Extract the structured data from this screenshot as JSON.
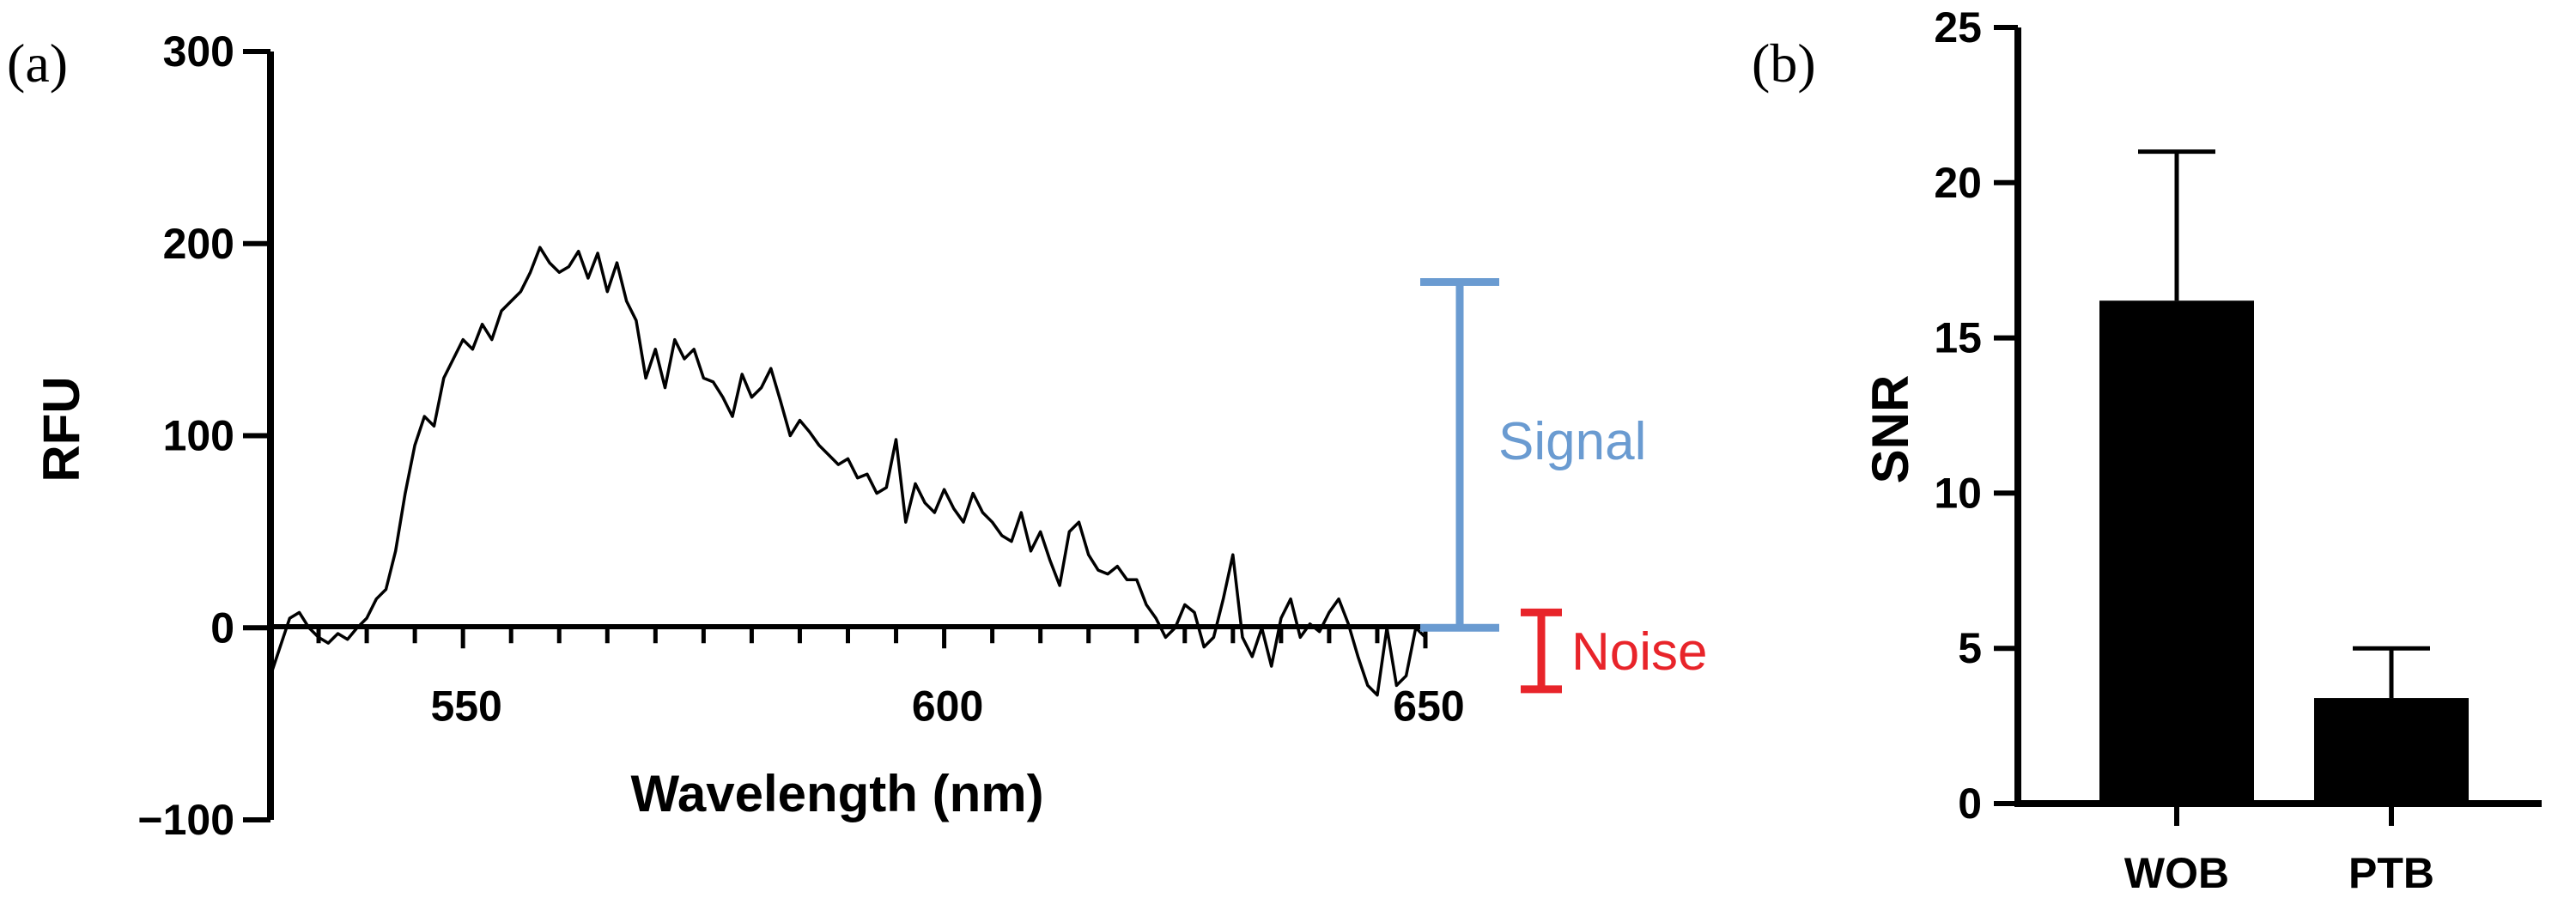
{
  "chart_data": [
    {
      "panel": "(a)",
      "type": "line",
      "xlabel": "Wavelength (nm)",
      "ylabel": "RFU",
      "xlim": [
        530,
        650
      ],
      "ylim": [
        -100,
        300
      ],
      "xticks": [
        "550",
        "600",
        "650"
      ],
      "yticks": [
        "300",
        "200",
        "100",
        "0",
        "−100"
      ],
      "x_minor_tick_step": 5,
      "grid": false,
      "colors": {
        "line": "#000000",
        "signal": "#6a9bd1",
        "noise": "#e8242a"
      },
      "annotations": [
        {
          "label": "Signal",
          "from": 0,
          "to": 180
        },
        {
          "label": "Noise",
          "from": -32,
          "to": 8
        }
      ],
      "series": [
        {
          "x": [
            530,
            531,
            532,
            533,
            534,
            535,
            536,
            537,
            538,
            539,
            540,
            541,
            542,
            543,
            544,
            545,
            546,
            547,
            548,
            549,
            550,
            551,
            552,
            553,
            554,
            555,
            556,
            557,
            558,
            559,
            560,
            561,
            562,
            563,
            564,
            565,
            566,
            567,
            568,
            569,
            570,
            571,
            572,
            573,
            574,
            575,
            576,
            577,
            578,
            579,
            580,
            581,
            582,
            583,
            584,
            585,
            586,
            587,
            588,
            589,
            590,
            591,
            592,
            593,
            594,
            595,
            596,
            597,
            598,
            599,
            600,
            601,
            602,
            603,
            604,
            605,
            606,
            607,
            608,
            609,
            610,
            611,
            612,
            613,
            614,
            615,
            616,
            617,
            618,
            619,
            620,
            621,
            622,
            623,
            624,
            625,
            626,
            627,
            628,
            629,
            630,
            631,
            632,
            633,
            634,
            635,
            636,
            637,
            638,
            639,
            640,
            641,
            642,
            643,
            644,
            645,
            646,
            647,
            648,
            649,
            650
          ],
          "y": [
            -25,
            -10,
            5,
            8,
            0,
            -5,
            -8,
            -3,
            -6,
            0,
            5,
            15,
            20,
            40,
            70,
            95,
            110,
            105,
            130,
            140,
            150,
            145,
            158,
            150,
            165,
            170,
            175,
            185,
            198,
            190,
            185,
            188,
            196,
            182,
            195,
            175,
            190,
            170,
            160,
            130,
            145,
            125,
            150,
            140,
            145,
            130,
            128,
            120,
            110,
            132,
            120,
            125,
            135,
            118,
            100,
            108,
            102,
            95,
            90,
            85,
            88,
            78,
            80,
            70,
            73,
            98,
            55,
            75,
            65,
            60,
            72,
            62,
            55,
            70,
            60,
            55,
            48,
            45,
            60,
            40,
            50,
            35,
            22,
            50,
            55,
            38,
            30,
            28,
            32,
            25,
            25,
            12,
            5,
            -5,
            0,
            12,
            8,
            -10,
            -5,
            15,
            38,
            -5,
            -15,
            0,
            -20,
            5,
            15,
            -5,
            2,
            -2,
            8,
            15,
            2,
            -15,
            -30,
            -35,
            0,
            -30,
            -25,
            0,
            -5
          ]
        }
      ]
    },
    {
      "panel": "(b)",
      "type": "bar",
      "ylabel": "SNR",
      "xlabel": "",
      "ylim": [
        0,
        25
      ],
      "yticks": [
        "0",
        "5",
        "10",
        "15",
        "20",
        "25"
      ],
      "categories": [
        "WOB",
        "PTB"
      ],
      "values": [
        16.2,
        3.4
      ],
      "errors": [
        4.8,
        1.6
      ],
      "grid": false,
      "colors": {
        "bar": "#000000"
      }
    }
  ]
}
